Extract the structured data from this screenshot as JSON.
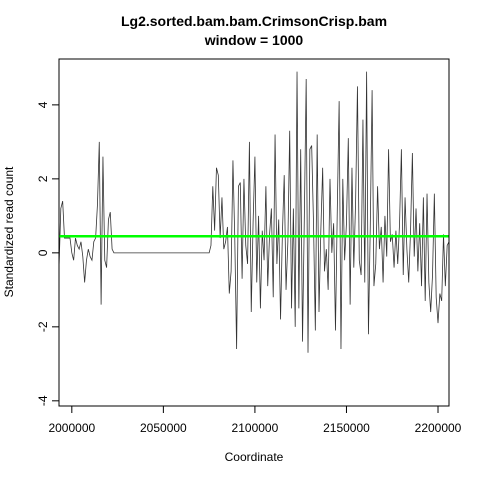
{
  "chart_data": {
    "type": "line",
    "title": "Lg2.sorted.bam.bam.CrimsonCrisp.bam",
    "subtitle": "window = 1000",
    "xlabel": "Coordinate",
    "ylabel": "Standardized read count",
    "xlim": [
      1993000,
      2206000
    ],
    "ylim": [
      -4.14,
      5.24
    ],
    "xticks": [
      {
        "value": 2000000,
        "label": "2000000"
      },
      {
        "value": 2050000,
        "label": "2050000"
      },
      {
        "value": 2100000,
        "label": "2100000"
      },
      {
        "value": 2150000,
        "label": "2150000"
      },
      {
        "value": 2200000,
        "label": "2200000"
      }
    ],
    "yticks": [
      -4,
      -2,
      0,
      2,
      4
    ],
    "hline": {
      "value": 0.45,
      "color": "#00ff00"
    },
    "x": [
      1993000,
      1994000,
      1995000,
      1996000,
      1997000,
      1998000,
      1999000,
      2000000,
      2001000,
      2002000,
      2003000,
      2004000,
      2005000,
      2006000,
      2007000,
      2008000,
      2009000,
      2010000,
      2011000,
      2012000,
      2013000,
      2014000,
      2015000,
      2016000,
      2017000,
      2018000,
      2019000,
      2020000,
      2021000,
      2022000,
      2023000,
      2024000,
      2025000,
      2026000,
      2027000,
      2028000,
      2029000,
      2030000,
      2031000,
      2032000,
      2033000,
      2034000,
      2035000,
      2036000,
      2037000,
      2038000,
      2039000,
      2040000,
      2041000,
      2042000,
      2043000,
      2044000,
      2045000,
      2046000,
      2047000,
      2048000,
      2049000,
      2050000,
      2051000,
      2052000,
      2053000,
      2054000,
      2055000,
      2056000,
      2057000,
      2058000,
      2059000,
      2060000,
      2061000,
      2062000,
      2063000,
      2064000,
      2065000,
      2066000,
      2067000,
      2068000,
      2069000,
      2070000,
      2071000,
      2072000,
      2073000,
      2074000,
      2075000,
      2076000,
      2077000,
      2078000,
      2079000,
      2080000,
      2081000,
      2082000,
      2083000,
      2084000,
      2085000,
      2086000,
      2087000,
      2088000,
      2089000,
      2090000,
      2091000,
      2092000,
      2093000,
      2094000,
      2095000,
      2096000,
      2097000,
      2098000,
      2099000,
      2100000,
      2101000,
      2102000,
      2103000,
      2104000,
      2105000,
      2106000,
      2107000,
      2108000,
      2109000,
      2110000,
      2111000,
      2112000,
      2113000,
      2114000,
      2115000,
      2116000,
      2117000,
      2118000,
      2119000,
      2120000,
      2121000,
      2122000,
      2123000,
      2124000,
      2125000,
      2126000,
      2127000,
      2128000,
      2129000,
      2130000,
      2131000,
      2132000,
      2133000,
      2134000,
      2135000,
      2136000,
      2137000,
      2138000,
      2139000,
      2140000,
      2141000,
      2142000,
      2143000,
      2144000,
      2145000,
      2146000,
      2147000,
      2148000,
      2149000,
      2150000,
      2151000,
      2152000,
      2153000,
      2154000,
      2155000,
      2156000,
      2157000,
      2158000,
      2159000,
      2160000,
      2161000,
      2162000,
      2163000,
      2164000,
      2165000,
      2166000,
      2167000,
      2168000,
      2169000,
      2170000,
      2171000,
      2172000,
      2173000,
      2174000,
      2175000,
      2176000,
      2177000,
      2178000,
      2179000,
      2180000,
      2181000,
      2182000,
      2183000,
      2184000,
      2185000,
      2186000,
      2187000,
      2188000,
      2189000,
      2190000,
      2191000,
      2192000,
      2193000,
      2194000,
      2195000,
      2196000,
      2197000,
      2198000,
      2199000,
      2200000,
      2201000,
      2202000,
      2203000,
      2204000,
      2205000,
      2206000
    ],
    "series": [
      {
        "color": "#333333",
        "values": [
          -0.4,
          1.2,
          1.4,
          0.4,
          0.4,
          0.4,
          0.4,
          0.0,
          -0.2,
          0.4,
          0.2,
          0.1,
          0.3,
          -0.1,
          -0.8,
          -0.2,
          0.1,
          -0.1,
          -0.2,
          0.3,
          0.4,
          1.3,
          3.0,
          -1.4,
          2.6,
          -0.2,
          -0.4,
          0.9,
          1.1,
          0.1,
          0,
          0,
          0,
          0,
          0,
          0,
          0,
          0,
          0,
          0,
          0,
          0,
          0,
          0,
          0,
          0,
          0,
          0,
          0,
          0,
          0,
          0,
          0,
          0,
          0,
          0,
          0,
          0,
          0,
          0,
          0,
          0,
          0,
          0,
          0,
          0,
          0,
          0,
          0,
          0,
          0,
          0,
          0,
          0,
          0,
          0,
          0,
          0,
          0,
          0,
          0,
          0,
          0,
          0.2,
          1.8,
          0.6,
          2.3,
          2.1,
          0.4,
          1.5,
          0.1,
          0.3,
          0.7,
          -1.1,
          -0.5,
          2.5,
          0.4,
          -2.6,
          1.8,
          1.9,
          -0.7,
          2.0,
          0.2,
          -0.3,
          3.0,
          -1.6,
          0.8,
          2.6,
          -0.8,
          1.0,
          -1.5,
          0.6,
          -0.2,
          1.8,
          -0.9,
          0.5,
          1.2,
          -1.2,
          3.2,
          -0.3,
          0.9,
          -1.8,
          0.5,
          2.1,
          -1.0,
          0.3,
          3.3,
          -1.5,
          1.2,
          -2.0,
          4.9,
          -1.5,
          2.8,
          -2.4,
          1.0,
          4.7,
          -2.7,
          2.8,
          2.9,
          0.8,
          -2.1,
          3.2,
          -1.6,
          0.6,
          2.3,
          -0.5,
          0.1,
          -1.0,
          2.0,
          0.0,
          0.8,
          -2.1,
          1.2,
          4.1,
          -2.6,
          2.0,
          -0.2,
          0.8,
          3.1,
          -1.4,
          2.3,
          -0.4,
          1.4,
          4.5,
          -0.2,
          -0.6,
          3.6,
          -0.8,
          4.9,
          -2.2,
          0.7,
          4.4,
          -0.9,
          -0.3,
          1.8,
          0.1,
          0.7,
          -0.8,
          1.0,
          -0.1,
          2.8,
          0.3,
          0.5,
          -0.4,
          0.6,
          -0.3,
          0.8,
          2.8,
          -0.6,
          1.5,
          0.1,
          -0.8,
          0.6,
          2.7,
          -0.1,
          1.2,
          -0.5,
          0.8,
          -0.9,
          1.5,
          -1.3,
          1.6,
          -0.8,
          -1.6,
          -0.6,
          1.6,
          -1.2,
          -1.9,
          -1.1,
          -1.3,
          0.5,
          -0.9,
          0.2,
          0.3
        ]
      }
    ]
  }
}
